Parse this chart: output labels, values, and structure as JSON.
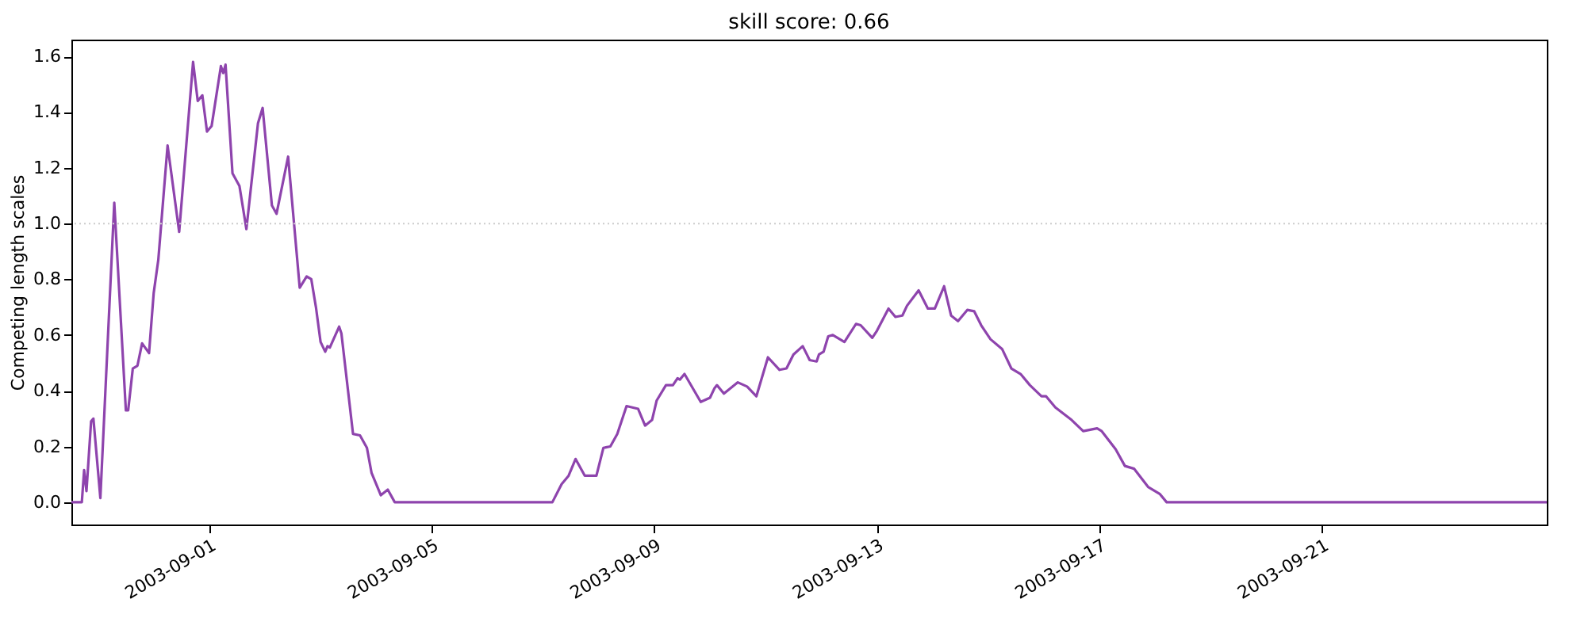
{
  "chart_data": {
    "type": "line",
    "title": "skill score: 0.66",
    "ylabel": "Competing length scales",
    "xlim": [
      "2003-08-29T12:30",
      "2003-09-25T01:00"
    ],
    "xticks": [
      "2003-09-01",
      "2003-09-05",
      "2003-09-09",
      "2003-09-13",
      "2003-09-17",
      "2003-09-21"
    ],
    "ylim": [
      -0.08,
      1.66
    ],
    "yticks": [
      {
        "value": 0,
        "label": "0.0"
      },
      {
        "value": 0.2,
        "label": "0.2"
      },
      {
        "value": 0.4,
        "label": "0.4"
      },
      {
        "value": 0.6,
        "label": "0.6"
      },
      {
        "value": 0.8,
        "label": "0.8"
      },
      {
        "value": 1,
        "label": "1.0"
      },
      {
        "value": 1.2,
        "label": "1.2"
      },
      {
        "value": 1.4,
        "label": "1.4"
      },
      {
        "value": 1.6,
        "label": "1.6"
      }
    ],
    "grid": false,
    "line_style": "solid",
    "marker": "none",
    "ref_lines": [
      {
        "axis": "y",
        "value": 1.0,
        "color": "#cccccc",
        "line_style": "dotted"
      }
    ],
    "series": [
      {
        "color": "#8e44ad",
        "x": [
          "2003-08-29T12:30",
          "2003-08-29T17:00",
          "2003-08-29T18:00",
          "2003-08-29T19:00",
          "2003-08-29T21:00",
          "2003-08-29T22:00",
          "2003-08-30T01:00",
          "2003-08-30T07:00",
          "2003-08-30T12:00",
          "2003-08-30T13:00",
          "2003-08-30T15:00",
          "2003-08-30T17:00",
          "2003-08-30T19:00",
          "2003-08-30T22:00",
          "2003-08-31T00:00",
          "2003-08-31T02:00",
          "2003-08-31T06:00",
          "2003-08-31T11:00",
          "2003-08-31T17:00",
          "2003-08-31T19:00",
          "2003-08-31T21:00",
          "2003-08-31T23:00",
          "2003-09-01T01:00",
          "2003-09-01T05:00",
          "2003-09-01T06:00",
          "2003-09-01T07:00",
          "2003-09-01T10:00",
          "2003-09-01T13:00",
          "2003-09-01T16:00",
          "2003-09-01T21:00",
          "2003-09-01T23:00",
          "2003-09-02T03:00",
          "2003-09-02T05:00",
          "2003-09-02T10:00",
          "2003-09-02T15:00",
          "2003-09-02T18:00",
          "2003-09-02T20:00",
          "2003-09-02T22:00",
          "2003-09-03T00:00",
          "2003-09-03T02:00",
          "2003-09-03T03:00",
          "2003-09-03T04:00",
          "2003-09-03T08:00",
          "2003-09-03T09:00",
          "2003-09-03T14:00",
          "2003-09-03T17:00",
          "2003-09-03T20:00",
          "2003-09-03T22:00",
          "2003-09-04T02:00",
          "2003-09-04T05:00",
          "2003-09-04T08:00",
          "2003-09-07T04:00",
          "2003-09-07T08:00",
          "2003-09-07T11:00",
          "2003-09-07T14:00",
          "2003-09-07T18:00",
          "2003-09-07T23:00",
          "2003-09-08T02:00",
          "2003-09-08T05:00",
          "2003-09-08T08:00",
          "2003-09-08T12:00",
          "2003-09-08T17:00",
          "2003-09-08T20:00",
          "2003-09-08T23:00",
          "2003-09-09T01:00",
          "2003-09-09T05:00",
          "2003-09-09T08:00",
          "2003-09-09T10:00",
          "2003-09-09T11:00",
          "2003-09-09T13:00",
          "2003-09-09T20:00",
          "2003-09-10T00:00",
          "2003-09-10T02:00",
          "2003-09-10T03:00",
          "2003-09-10T06:00",
          "2003-09-10T12:00",
          "2003-09-10T16:00",
          "2003-09-10T20:00",
          "2003-09-11T01:00",
          "2003-09-11T06:00",
          "2003-09-11T09:00",
          "2003-09-11T12:00",
          "2003-09-11T16:00",
          "2003-09-11T19:00",
          "2003-09-11T22:00",
          "2003-09-11T23:00",
          "2003-09-12T01:00",
          "2003-09-12T03:00",
          "2003-09-12T05:00",
          "2003-09-12T10:00",
          "2003-09-12T15:00",
          "2003-09-12T17:00",
          "2003-09-12T22:00",
          "2003-09-13T00:00",
          "2003-09-13T05:00",
          "2003-09-13T08:00",
          "2003-09-13T11:00",
          "2003-09-13T13:00",
          "2003-09-13T18:00",
          "2003-09-13T22:00",
          "2003-09-14T01:00",
          "2003-09-14T05:00",
          "2003-09-14T08:00",
          "2003-09-14T11:00",
          "2003-09-14T15:00",
          "2003-09-14T18:00",
          "2003-09-14T21:00",
          "2003-09-15T01:00",
          "2003-09-15T06:00",
          "2003-09-15T10:00",
          "2003-09-15T14:00",
          "2003-09-15T18:00",
          "2003-09-15T23:00",
          "2003-09-16T01:00",
          "2003-09-16T05:00",
          "2003-09-16T12:00",
          "2003-09-16T17:00",
          "2003-09-16T23:00",
          "2003-09-17T01:00",
          "2003-09-17T07:00",
          "2003-09-17T11:00",
          "2003-09-17T15:00",
          "2003-09-17T21:00",
          "2003-09-18T02:00",
          "2003-09-18T05:00",
          "2003-09-25T01:00"
        ],
        "values": [
          0,
          0,
          0.115,
          0.04,
          0.29,
          0.3,
          0.015,
          1.075,
          0.33,
          0.33,
          0.48,
          0.49,
          0.57,
          0.535,
          0.75,
          0.87,
          1.28,
          0.97,
          1.58,
          1.44,
          1.46,
          1.33,
          1.35,
          1.565,
          1.54,
          1.57,
          1.18,
          1.135,
          0.98,
          1.36,
          1.415,
          1.065,
          1.035,
          1.24,
          0.77,
          0.81,
          0.8,
          0.7,
          0.575,
          0.54,
          0.56,
          0.555,
          0.63,
          0.605,
          0.245,
          0.24,
          0.195,
          0.105,
          0.025,
          0.045,
          0,
          0,
          0.065,
          0.095,
          0.155,
          0.095,
          0.095,
          0.195,
          0.2,
          0.245,
          0.345,
          0.335,
          0.275,
          0.295,
          0.365,
          0.42,
          0.42,
          0.445,
          0.44,
          0.46,
          0.36,
          0.375,
          0.41,
          0.42,
          0.39,
          0.43,
          0.415,
          0.38,
          0.52,
          0.475,
          0.48,
          0.53,
          0.56,
          0.51,
          0.505,
          0.53,
          0.54,
          0.595,
          0.6,
          0.575,
          0.64,
          0.635,
          0.59,
          0.615,
          0.695,
          0.665,
          0.67,
          0.705,
          0.76,
          0.695,
          0.695,
          0.775,
          0.67,
          0.65,
          0.69,
          0.685,
          0.635,
          0.585,
          0.55,
          0.48,
          0.46,
          0.42,
          0.38,
          0.38,
          0.34,
          0.295,
          0.255,
          0.265,
          0.255,
          0.19,
          0.13,
          0.12,
          0.055,
          0.03,
          0,
          0
        ]
      }
    ]
  }
}
